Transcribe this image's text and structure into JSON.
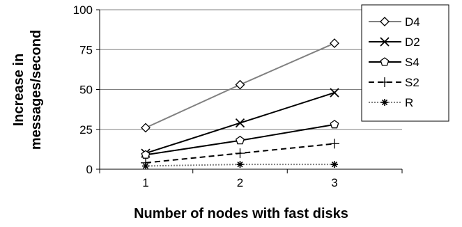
{
  "chart_data": {
    "type": "line",
    "title": "",
    "xlabel": "Number of nodes with fast disks",
    "ylabel": [
      "Increase in",
      "messages/second"
    ],
    "x": [
      1,
      2,
      3
    ],
    "x_tick_labels": [
      "1",
      "2",
      "3"
    ],
    "ylim": [
      0,
      100
    ],
    "y_ticks": [
      0,
      25,
      50,
      75,
      100
    ],
    "y_tick_labels": [
      "0",
      "25",
      "50",
      "75",
      "100"
    ],
    "grid": "horizontal",
    "legend_position": "right",
    "series": [
      {
        "name": "D4",
        "values": [
          26,
          53,
          79
        ],
        "color": "#808080",
        "dash": "solid",
        "marker": "diamond"
      },
      {
        "name": "D2",
        "values": [
          10,
          29,
          48
        ],
        "color": "#000000",
        "dash": "solid",
        "marker": "x"
      },
      {
        "name": "S4",
        "values": [
          9,
          18,
          28
        ],
        "color": "#000000",
        "dash": "solid",
        "marker": "pentagon"
      },
      {
        "name": "S2",
        "values": [
          4,
          10,
          16
        ],
        "color": "#000000",
        "dash": "dashed",
        "marker": "plus"
      },
      {
        "name": "R",
        "values": [
          2,
          3,
          3
        ],
        "color": "#808080",
        "dash": "dotted",
        "marker": "star"
      }
    ]
  }
}
